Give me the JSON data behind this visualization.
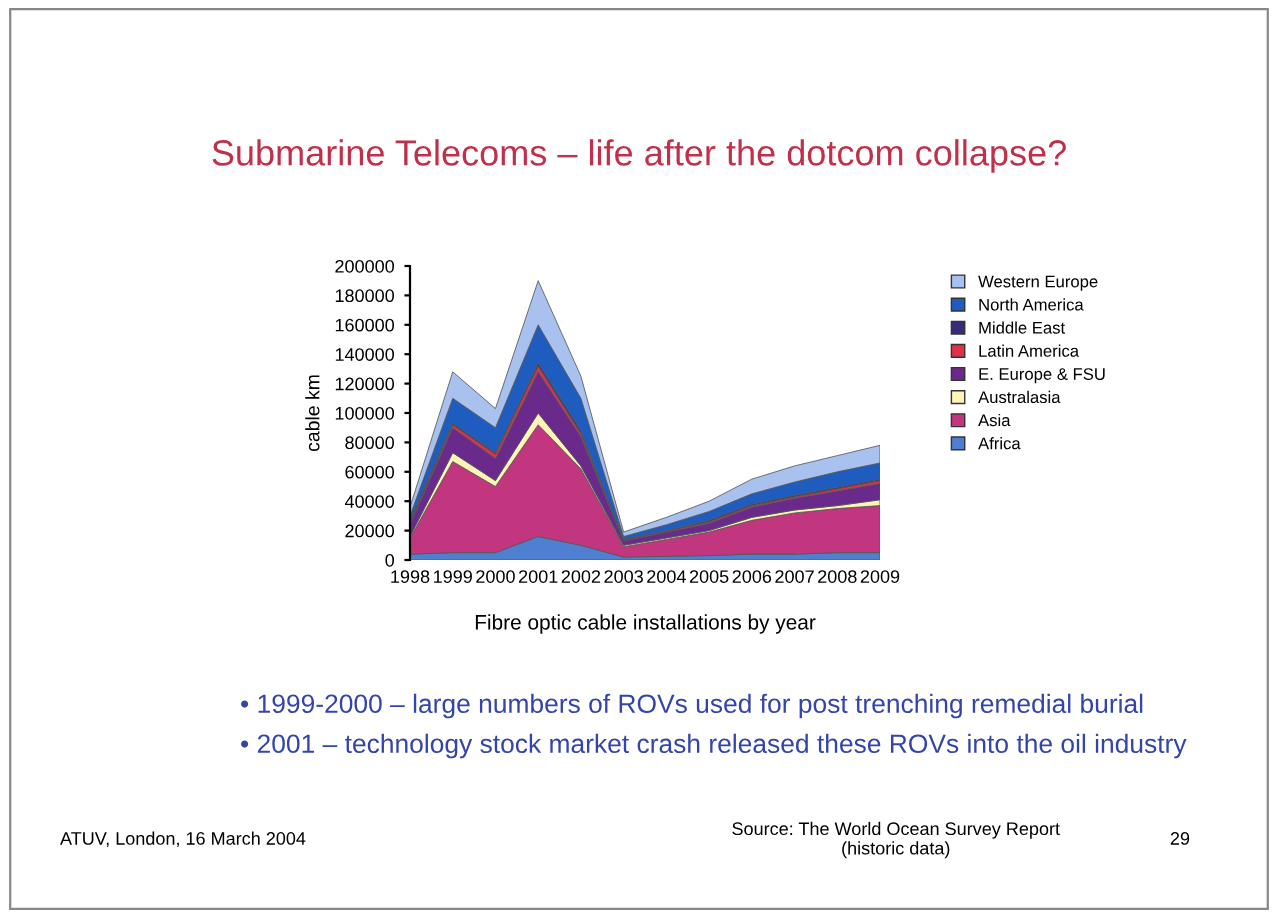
{
  "chart_data": {
    "type": "area",
    "stacked": true,
    "title": "Submarine Telecoms – life after the dotcom collapse?",
    "xlabel": "Fibre optic cable installations by year",
    "ylabel": "cable km",
    "categories": [
      "1998",
      "1999",
      "2000",
      "2001",
      "2002",
      "2003",
      "2004",
      "2005",
      "2006",
      "2007",
      "2008",
      "2009"
    ],
    "series": [
      {
        "name": "Africa",
        "color": "#4f7fd0",
        "values": [
          4000,
          5000,
          5000,
          16000,
          10000,
          2000,
          2500,
          3000,
          4000,
          4000,
          5000,
          5000
        ]
      },
      {
        "name": "Asia",
        "color": "#c2367f",
        "values": [
          11000,
          62000,
          45000,
          76000,
          52000,
          7000,
          11500,
          16000,
          23000,
          28000,
          30000,
          32000
        ]
      },
      {
        "name": "Australasia",
        "color": "#fff4b8",
        "values": [
          1000,
          6000,
          4000,
          8000,
          2000,
          1000,
          1000,
          1000,
          2000,
          2000,
          2000,
          4000
        ]
      },
      {
        "name": "E. Europe & FSU",
        "color": "#6a2a8c",
        "values": [
          8000,
          17000,
          15000,
          28000,
          20000,
          3000,
          4000,
          5000,
          7000,
          8000,
          10000,
          11000
        ]
      },
      {
        "name": "Latin America",
        "color": "#e0304a",
        "values": [
          1000,
          2000,
          3000,
          4000,
          2000,
          500,
          500,
          1000,
          1000,
          1000,
          1500,
          2000
        ]
      },
      {
        "name": "Middle East",
        "color": "#3a2a7a",
        "values": [
          2000,
          1000,
          1000,
          2000,
          2000,
          500,
          500,
          1000,
          1000,
          1000,
          1000,
          1000
        ]
      },
      {
        "name": "North America",
        "color": "#1f5cc0",
        "values": [
          3000,
          17000,
          17000,
          26000,
          22000,
          2000,
          4000,
          6000,
          7000,
          9000,
          10500,
          11000
        ]
      },
      {
        "name": "Western Europe",
        "color": "#a9c1ee",
        "values": [
          6000,
          18000,
          13000,
          30000,
          15000,
          3000,
          5000,
          7000,
          10000,
          11000,
          11000,
          12000
        ]
      }
    ],
    "ylim": [
      0,
      200000
    ],
    "yticks": [
      0,
      20000,
      40000,
      60000,
      80000,
      100000,
      120000,
      140000,
      160000,
      180000,
      200000
    ],
    "grid": false,
    "legend": "right",
    "annotations": [
      "• 1999-2000 – large numbers of ROVs used for post trenching remedial burial",
      "• 2001 – technology stock market crash released these ROVs into the oil industry",
      "ATUV, London, 16 March 2004",
      "Source: The World Ocean Survey Report\n(historic data)",
      "29"
    ]
  }
}
